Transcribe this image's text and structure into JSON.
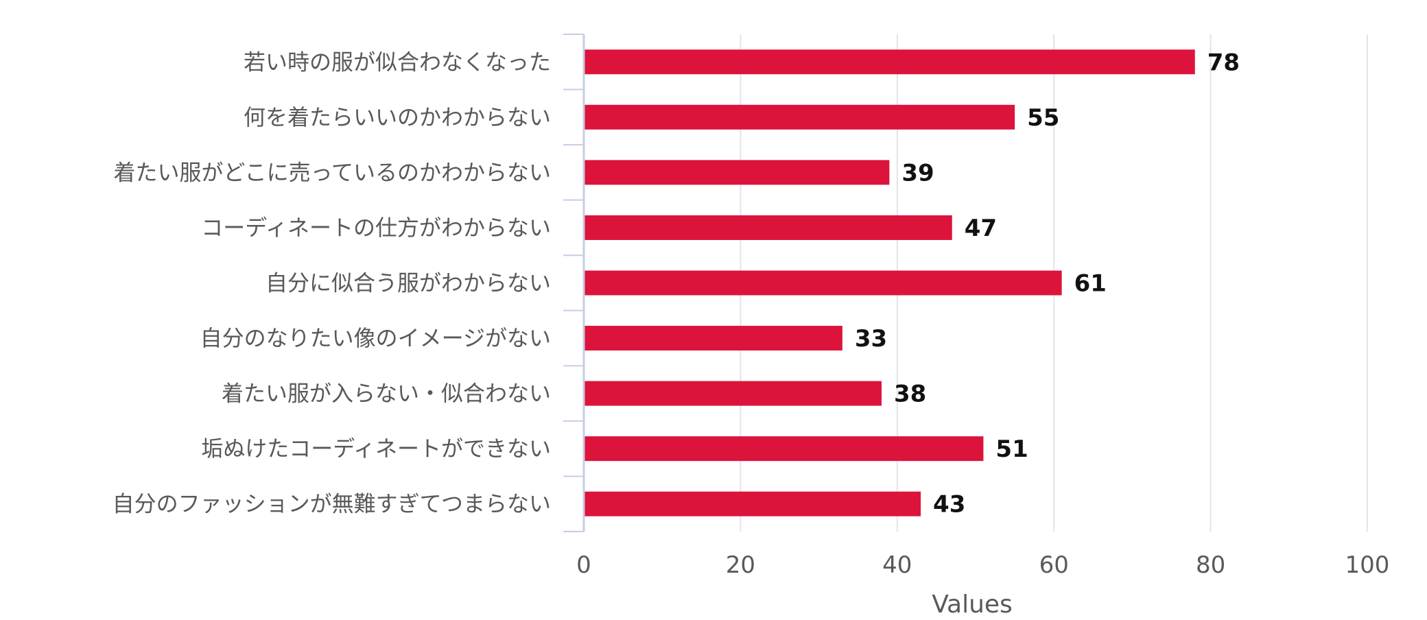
{
  "chart_data": {
    "type": "bar",
    "orientation": "horizontal",
    "categories": [
      "若い時の服が似合わなくなった",
      "何を着たらいいのかわからない",
      "着たい服がどこに売っているのかわからない",
      "コーディネートの仕方がわからない",
      "自分に似合う服がわからない",
      "自分のなりたい像のイメージがない",
      "着たい服が入らない・似合わない",
      "垢ぬけたコーディネートができない",
      "自分のファッションが無難すぎてつまらない"
    ],
    "values": [
      78,
      55,
      39,
      47,
      61,
      33,
      38,
      51,
      43
    ],
    "xlabel": "Values",
    "ylabel": "",
    "xlim": [
      0,
      100
    ],
    "x_ticks": [
      0,
      20,
      40,
      60,
      80,
      100
    ],
    "grid": true,
    "data_labels": true,
    "colors": {
      "bar": "#dc143c",
      "grid": "#e3e3ea",
      "axis": "#c5cde3"
    }
  }
}
